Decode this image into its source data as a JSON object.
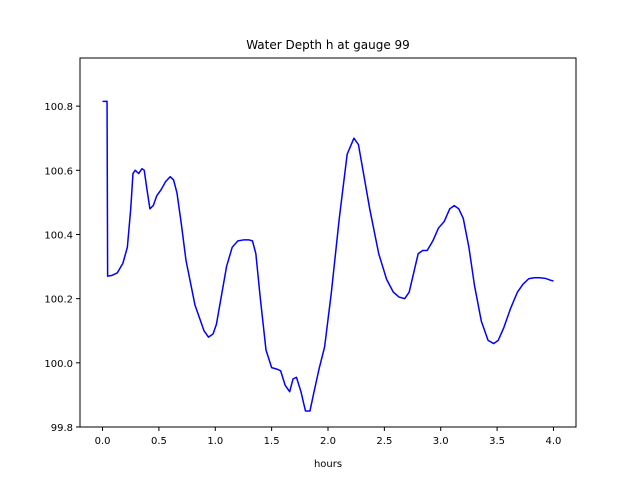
{
  "chart_data": {
    "type": "line",
    "title": "Water Depth h at gauge 99",
    "xlabel": "hours",
    "ylabel": "",
    "xlim": [
      -0.2,
      4.2
    ],
    "ylim": [
      99.8,
      100.95
    ],
    "xticks": [
      0.0,
      0.5,
      1.0,
      1.5,
      2.0,
      2.5,
      3.0,
      3.5,
      4.0
    ],
    "xtick_labels": [
      "0.0",
      "0.5",
      "1.0",
      "1.5",
      "2.0",
      "2.5",
      "3.0",
      "3.5",
      "4.0"
    ],
    "yticks": [
      99.8,
      100.0,
      100.2,
      100.4,
      100.6,
      100.8
    ],
    "ytick_labels": [
      "99.8",
      "100.0",
      "100.2",
      "100.4",
      "100.6",
      "100.8"
    ],
    "grid": false,
    "series": [
      {
        "color": "#0000ff",
        "x": [
          0.0,
          0.04,
          0.045,
          0.08,
          0.13,
          0.18,
          0.22,
          0.25,
          0.27,
          0.29,
          0.32,
          0.35,
          0.37,
          0.39,
          0.42,
          0.45,
          0.48,
          0.52,
          0.56,
          0.6,
          0.63,
          0.66,
          0.7,
          0.74,
          0.78,
          0.82,
          0.86,
          0.9,
          0.94,
          0.98,
          1.01,
          1.05,
          1.1,
          1.15,
          1.2,
          1.25,
          1.3,
          1.33,
          1.36,
          1.4,
          1.45,
          1.5,
          1.55,
          1.58,
          1.62,
          1.66,
          1.69,
          1.72,
          1.76,
          1.8,
          1.84,
          1.87,
          1.92,
          1.97,
          2.03,
          2.1,
          2.17,
          2.23,
          2.27,
          2.31,
          2.37,
          2.45,
          2.52,
          2.58,
          2.63,
          2.68,
          2.72,
          2.76,
          2.8,
          2.84,
          2.88,
          2.93,
          2.98,
          3.03,
          3.08,
          3.12,
          3.16,
          3.2,
          3.25,
          3.3,
          3.36,
          3.42,
          3.47,
          3.51,
          3.56,
          3.62,
          3.68,
          3.73,
          3.78,
          3.83,
          3.88,
          3.93,
          3.97,
          4.0
        ],
        "y": [
          100.815,
          100.815,
          100.27,
          100.272,
          100.28,
          100.31,
          100.36,
          100.48,
          100.59,
          100.6,
          100.59,
          100.605,
          100.6,
          100.55,
          100.48,
          100.49,
          100.52,
          100.54,
          100.565,
          100.58,
          100.57,
          100.53,
          100.43,
          100.32,
          100.25,
          100.18,
          100.14,
          100.1,
          100.08,
          100.09,
          100.12,
          100.2,
          100.3,
          100.36,
          100.38,
          100.383,
          100.383,
          100.38,
          100.34,
          100.2,
          100.04,
          99.985,
          99.98,
          99.975,
          99.93,
          99.91,
          99.95,
          99.955,
          99.91,
          99.85,
          99.85,
          99.9,
          99.98,
          100.05,
          100.22,
          100.45,
          100.65,
          100.7,
          100.68,
          100.6,
          100.48,
          100.34,
          100.26,
          100.22,
          100.205,
          100.2,
          100.22,
          100.28,
          100.34,
          100.35,
          100.35,
          100.38,
          100.42,
          100.44,
          100.48,
          100.49,
          100.48,
          100.45,
          100.36,
          100.24,
          100.13,
          100.07,
          100.06,
          100.07,
          100.11,
          100.17,
          100.22,
          100.245,
          100.262,
          100.265,
          100.265,
          100.263,
          100.258,
          100.255
        ]
      }
    ]
  }
}
